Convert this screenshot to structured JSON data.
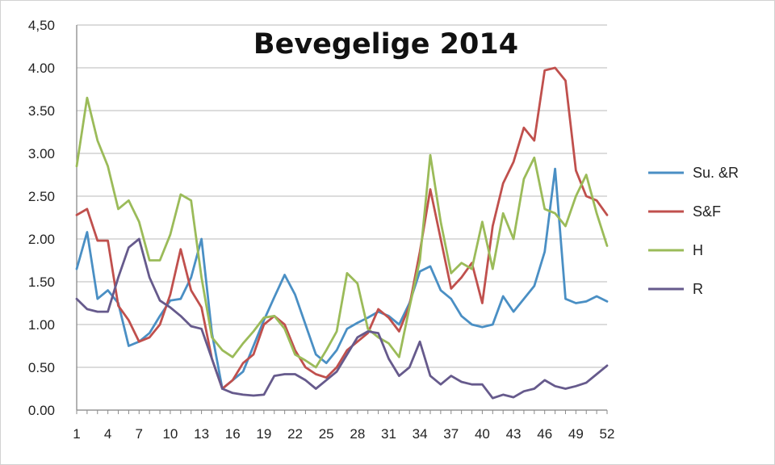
{
  "chart_data": {
    "type": "line",
    "title": "Bevegelige 2014",
    "xlabel": "",
    "ylabel": "",
    "ylim": [
      0,
      4.5
    ],
    "y_ticks": [
      "0.00",
      "0.50",
      "1.00",
      "1.50",
      "2.00",
      "2.50",
      "3.00",
      "3.50",
      "4.00",
      "4,50"
    ],
    "x_tick_labels": [
      "1",
      "4",
      "7",
      "10",
      "13",
      "16",
      "19",
      "22",
      "25",
      "28",
      "31",
      "34",
      "37",
      "40",
      "43",
      "46",
      "49",
      "52"
    ],
    "grid": "horizontal",
    "legend_position": "right",
    "x": [
      1,
      2,
      3,
      4,
      5,
      6,
      7,
      8,
      9,
      10,
      11,
      12,
      13,
      14,
      15,
      16,
      17,
      18,
      19,
      20,
      21,
      22,
      23,
      24,
      25,
      26,
      27,
      28,
      29,
      30,
      31,
      32,
      33,
      34,
      35,
      36,
      37,
      38,
      39,
      40,
      41,
      42,
      43,
      44,
      45,
      46,
      47,
      48,
      49,
      50,
      51,
      52
    ],
    "series": [
      {
        "name": "Su. &R",
        "color": "#4a8fc4",
        "values": [
          1.65,
          2.08,
          1.3,
          1.4,
          1.25,
          0.75,
          0.8,
          0.9,
          1.1,
          1.28,
          1.3,
          1.55,
          2.0,
          0.9,
          0.25,
          0.35,
          0.45,
          0.75,
          1.05,
          1.32,
          1.58,
          1.35,
          1.0,
          0.65,
          0.55,
          0.7,
          0.95,
          1.02,
          1.08,
          1.15,
          1.1,
          1.0,
          1.25,
          1.62,
          1.68,
          1.4,
          1.3,
          1.1,
          1.0,
          0.97,
          1.0,
          1.33,
          1.15,
          1.3,
          1.45,
          1.85,
          2.82,
          1.3,
          1.25,
          1.27,
          1.33,
          1.27
        ]
      },
      {
        "name": "S&F",
        "color": "#c0504d",
        "values": [
          2.28,
          2.35,
          1.98,
          1.98,
          1.22,
          1.05,
          0.8,
          0.85,
          1.0,
          1.35,
          1.88,
          1.4,
          1.2,
          0.6,
          0.25,
          0.35,
          0.55,
          0.65,
          1.0,
          1.1,
          1.0,
          0.7,
          0.5,
          0.42,
          0.38,
          0.5,
          0.7,
          0.8,
          0.9,
          1.18,
          1.08,
          0.92,
          1.22,
          1.85,
          2.58,
          2.0,
          1.42,
          1.55,
          1.72,
          1.25,
          2.15,
          2.65,
          2.9,
          3.3,
          3.15,
          3.97,
          4.0,
          3.85,
          2.8,
          2.5,
          2.45,
          2.28
        ]
      },
      {
        "name": "H",
        "color": "#9bbb59",
        "values": [
          2.85,
          3.65,
          3.15,
          2.85,
          2.35,
          2.45,
          2.2,
          1.75,
          1.75,
          2.05,
          2.52,
          2.45,
          1.55,
          0.85,
          0.7,
          0.62,
          0.78,
          0.92,
          1.08,
          1.1,
          0.95,
          0.65,
          0.58,
          0.5,
          0.7,
          0.92,
          1.6,
          1.48,
          0.95,
          0.85,
          0.78,
          0.62,
          1.2,
          1.75,
          2.98,
          2.2,
          1.6,
          1.72,
          1.65,
          2.2,
          1.65,
          2.3,
          2.0,
          2.7,
          2.95,
          2.35,
          2.3,
          2.15,
          2.5,
          2.75,
          2.3,
          1.92
        ]
      },
      {
        "name": "R",
        "color": "#665a8c",
        "values": [
          1.3,
          1.18,
          1.15,
          1.15,
          1.55,
          1.9,
          2.0,
          1.55,
          1.28,
          1.2,
          1.1,
          0.98,
          0.95,
          0.6,
          0.25,
          0.2,
          0.18,
          0.17,
          0.18,
          0.4,
          0.42,
          0.42,
          0.35,
          0.25,
          0.35,
          0.45,
          0.65,
          0.85,
          0.92,
          0.9,
          0.6,
          0.4,
          0.5,
          0.8,
          0.4,
          0.3,
          0.4,
          0.33,
          0.3,
          0.3,
          0.14,
          0.18,
          0.15,
          0.22,
          0.25,
          0.35,
          0.28,
          0.25,
          0.28,
          0.32,
          0.42,
          0.52
        ]
      }
    ]
  }
}
